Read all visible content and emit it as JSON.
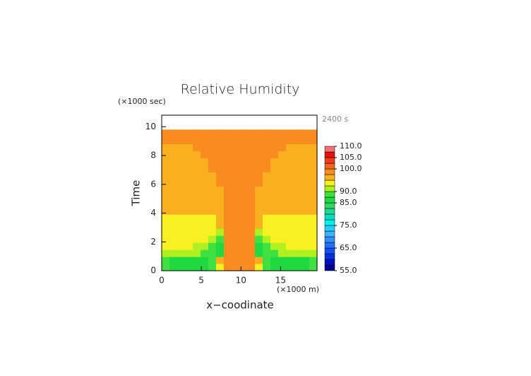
{
  "chart_data": {
    "type": "contour",
    "title": "Relative Humidity",
    "y_unit_label": "(×1000 sec)",
    "time_label": "2400 s",
    "ylabel": "Time",
    "xlabel": "x−coodinate",
    "x_unit_label": "(×1000 m)",
    "xlim": [
      0,
      19.6
    ],
    "ylim": [
      0,
      10.8
    ],
    "xticks": [
      0,
      5,
      10,
      15
    ],
    "yticks": [
      0,
      2,
      4,
      6,
      8,
      10
    ],
    "x": [
      0,
      0.98,
      1.96,
      2.94,
      3.92,
      4.9,
      5.88,
      6.86,
      7.84,
      8.82,
      9.8,
      10.78,
      11.76,
      12.74,
      13.72,
      14.7,
      15.68,
      16.66,
      17.64,
      18.62,
      19.6
    ],
    "y": [
      0,
      0.49,
      0.98,
      1.47,
      1.96,
      2.45,
      2.94,
      3.43,
      3.92,
      4.41,
      4.9,
      5.39,
      5.88,
      6.37,
      6.86,
      7.35,
      7.84,
      8.33,
      8.82,
      9.31,
      9.8
    ],
    "z": [
      [
        88.5,
        86,
        86,
        86,
        86,
        86,
        88.5,
        93.5,
        98.5,
        98.5,
        98.5,
        98.5,
        93.5,
        88.5,
        86,
        86,
        86,
        86,
        86,
        88.5
      ],
      [
        88.5,
        86,
        86,
        86,
        86,
        86,
        88.5,
        96,
        98.5,
        98.5,
        98.5,
        98.5,
        96,
        88.5,
        86,
        86,
        86,
        86,
        86,
        88.5
      ],
      [
        91,
        91,
        91,
        91,
        91,
        88.5,
        88.5,
        86,
        98.5,
        98.5,
        98.5,
        98.5,
        86,
        88.5,
        88.5,
        91,
        91,
        91,
        91,
        91
      ],
      [
        93.5,
        93.5,
        93.5,
        93.5,
        91,
        91,
        88.5,
        86,
        98.5,
        98.5,
        98.5,
        98.5,
        86,
        88.5,
        91,
        91,
        93.5,
        93.5,
        93.5,
        93.5
      ],
      [
        93.5,
        93.5,
        93.5,
        93.5,
        93.5,
        93.5,
        91,
        88.5,
        98.5,
        98.5,
        98.5,
        98.5,
        88.5,
        91,
        93.5,
        93.5,
        93.5,
        93.5,
        93.5,
        93.5
      ],
      [
        93.5,
        93.5,
        93.5,
        93.5,
        93.5,
        93.5,
        93.5,
        91,
        98.5,
        98.5,
        98.5,
        98.5,
        91,
        93.5,
        93.5,
        93.5,
        93.5,
        93.5,
        93.5,
        93.5
      ],
      [
        93.5,
        93.5,
        93.5,
        93.5,
        93.5,
        93.5,
        93.5,
        96,
        98.5,
        98.5,
        98.5,
        98.5,
        96,
        93.5,
        93.5,
        93.5,
        93.5,
        93.5,
        93.5,
        93.5
      ],
      [
        93.5,
        93.5,
        93.5,
        93.5,
        93.5,
        93.5,
        93.5,
        96,
        98.5,
        98.5,
        98.5,
        98.5,
        96,
        93.5,
        93.5,
        93.5,
        93.5,
        93.5,
        93.5,
        93.5
      ],
      [
        96,
        96,
        96,
        96,
        96,
        96,
        96,
        96,
        98.5,
        98.5,
        98.5,
        98.5,
        96,
        96,
        96,
        96,
        96,
        96,
        96,
        96
      ],
      [
        96,
        96,
        96,
        96,
        96,
        96,
        96,
        96,
        98.5,
        98.5,
        98.5,
        98.5,
        96,
        96,
        96,
        96,
        96,
        96,
        96,
        96
      ],
      [
        96,
        96,
        96,
        96,
        96,
        96,
        96,
        96,
        98.5,
        98.5,
        98.5,
        98.5,
        96,
        96,
        96,
        96,
        96,
        96,
        96,
        96
      ],
      [
        96,
        96,
        96,
        96,
        96,
        96,
        96,
        96,
        98.5,
        98.5,
        98.5,
        98.5,
        96,
        96,
        96,
        96,
        96,
        96,
        96,
        96
      ],
      [
        96,
        96,
        96,
        96,
        96,
        96,
        96,
        98.5,
        98.5,
        98.5,
        98.5,
        98.5,
        98.5,
        96,
        96,
        96,
        96,
        96,
        96,
        96
      ],
      [
        96,
        96,
        96,
        96,
        96,
        96,
        96,
        98.5,
        98.5,
        98.5,
        98.5,
        98.5,
        98.5,
        96,
        96,
        96,
        96,
        96,
        96,
        96
      ],
      [
        96,
        96,
        96,
        96,
        96,
        96,
        98.5,
        98.5,
        98.5,
        98.5,
        98.5,
        98.5,
        98.5,
        98.5,
        96,
        96,
        96,
        96,
        96,
        96
      ],
      [
        96,
        96,
        96,
        96,
        96,
        96,
        98.5,
        98.5,
        98.5,
        98.5,
        98.5,
        98.5,
        98.5,
        98.5,
        96,
        96,
        96,
        96,
        96,
        96
      ],
      [
        96,
        96,
        96,
        96,
        96,
        98.5,
        98.5,
        98.5,
        98.5,
        98.5,
        98.5,
        98.5,
        98.5,
        98.5,
        98.5,
        96,
        96,
        96,
        96,
        96
      ],
      [
        96,
        96,
        96,
        96,
        98.5,
        98.5,
        98.5,
        98.5,
        98.5,
        98.5,
        98.5,
        98.5,
        98.5,
        98.5,
        98.5,
        98.5,
        96,
        96,
        96,
        96
      ],
      [
        98.5,
        98.5,
        98.5,
        98.5,
        98.5,
        98.5,
        98.5,
        98.5,
        98.5,
        98.5,
        98.5,
        98.5,
        98.5,
        98.5,
        98.5,
        98.5,
        98.5,
        98.5,
        98.5,
        98.5
      ],
      [
        98.5,
        98.5,
        98.5,
        98.5,
        98.5,
        98.5,
        98.5,
        98.5,
        98.5,
        98.5,
        98.5,
        98.5,
        98.5,
        98.5,
        98.5,
        98.5,
        98.5,
        98.5,
        98.5,
        98.5
      ]
    ],
    "levels": [
      55,
      57.5,
      60,
      62.5,
      65,
      67.5,
      70,
      72.5,
      75,
      77.5,
      80,
      82.5,
      85,
      87.5,
      90,
      92.5,
      95,
      97.5,
      100,
      102.5,
      105,
      107.5,
      110
    ],
    "level_colors": [
      "#000090",
      "#0010c0",
      "#0030e0",
      "#1050f0",
      "#2070f8",
      "#3090f8",
      "#40b0f8",
      "#20d0f8",
      "#00f0f0",
      "#00e0c0",
      "#20d890",
      "#30d860",
      "#20d840",
      "#40e040",
      "#b0f020",
      "#f8f020",
      "#f8b020",
      "#f88c1e",
      "#f0641e",
      "#f03c1e",
      "#e81010",
      "#f07070",
      "#f8a8a8"
    ],
    "colorbar_ticks": [
      {
        "value": 55,
        "label": "55.0"
      },
      {
        "value": 65,
        "label": "65.0"
      },
      {
        "value": 75,
        "label": "75.0"
      },
      {
        "value": 85,
        "label": "85.0"
      },
      {
        "value": 90,
        "label": "90.0"
      },
      {
        "value": 100,
        "label": "100.0"
      },
      {
        "value": 105,
        "label": "105.0"
      },
      {
        "value": 110,
        "label": "110.0"
      }
    ]
  }
}
